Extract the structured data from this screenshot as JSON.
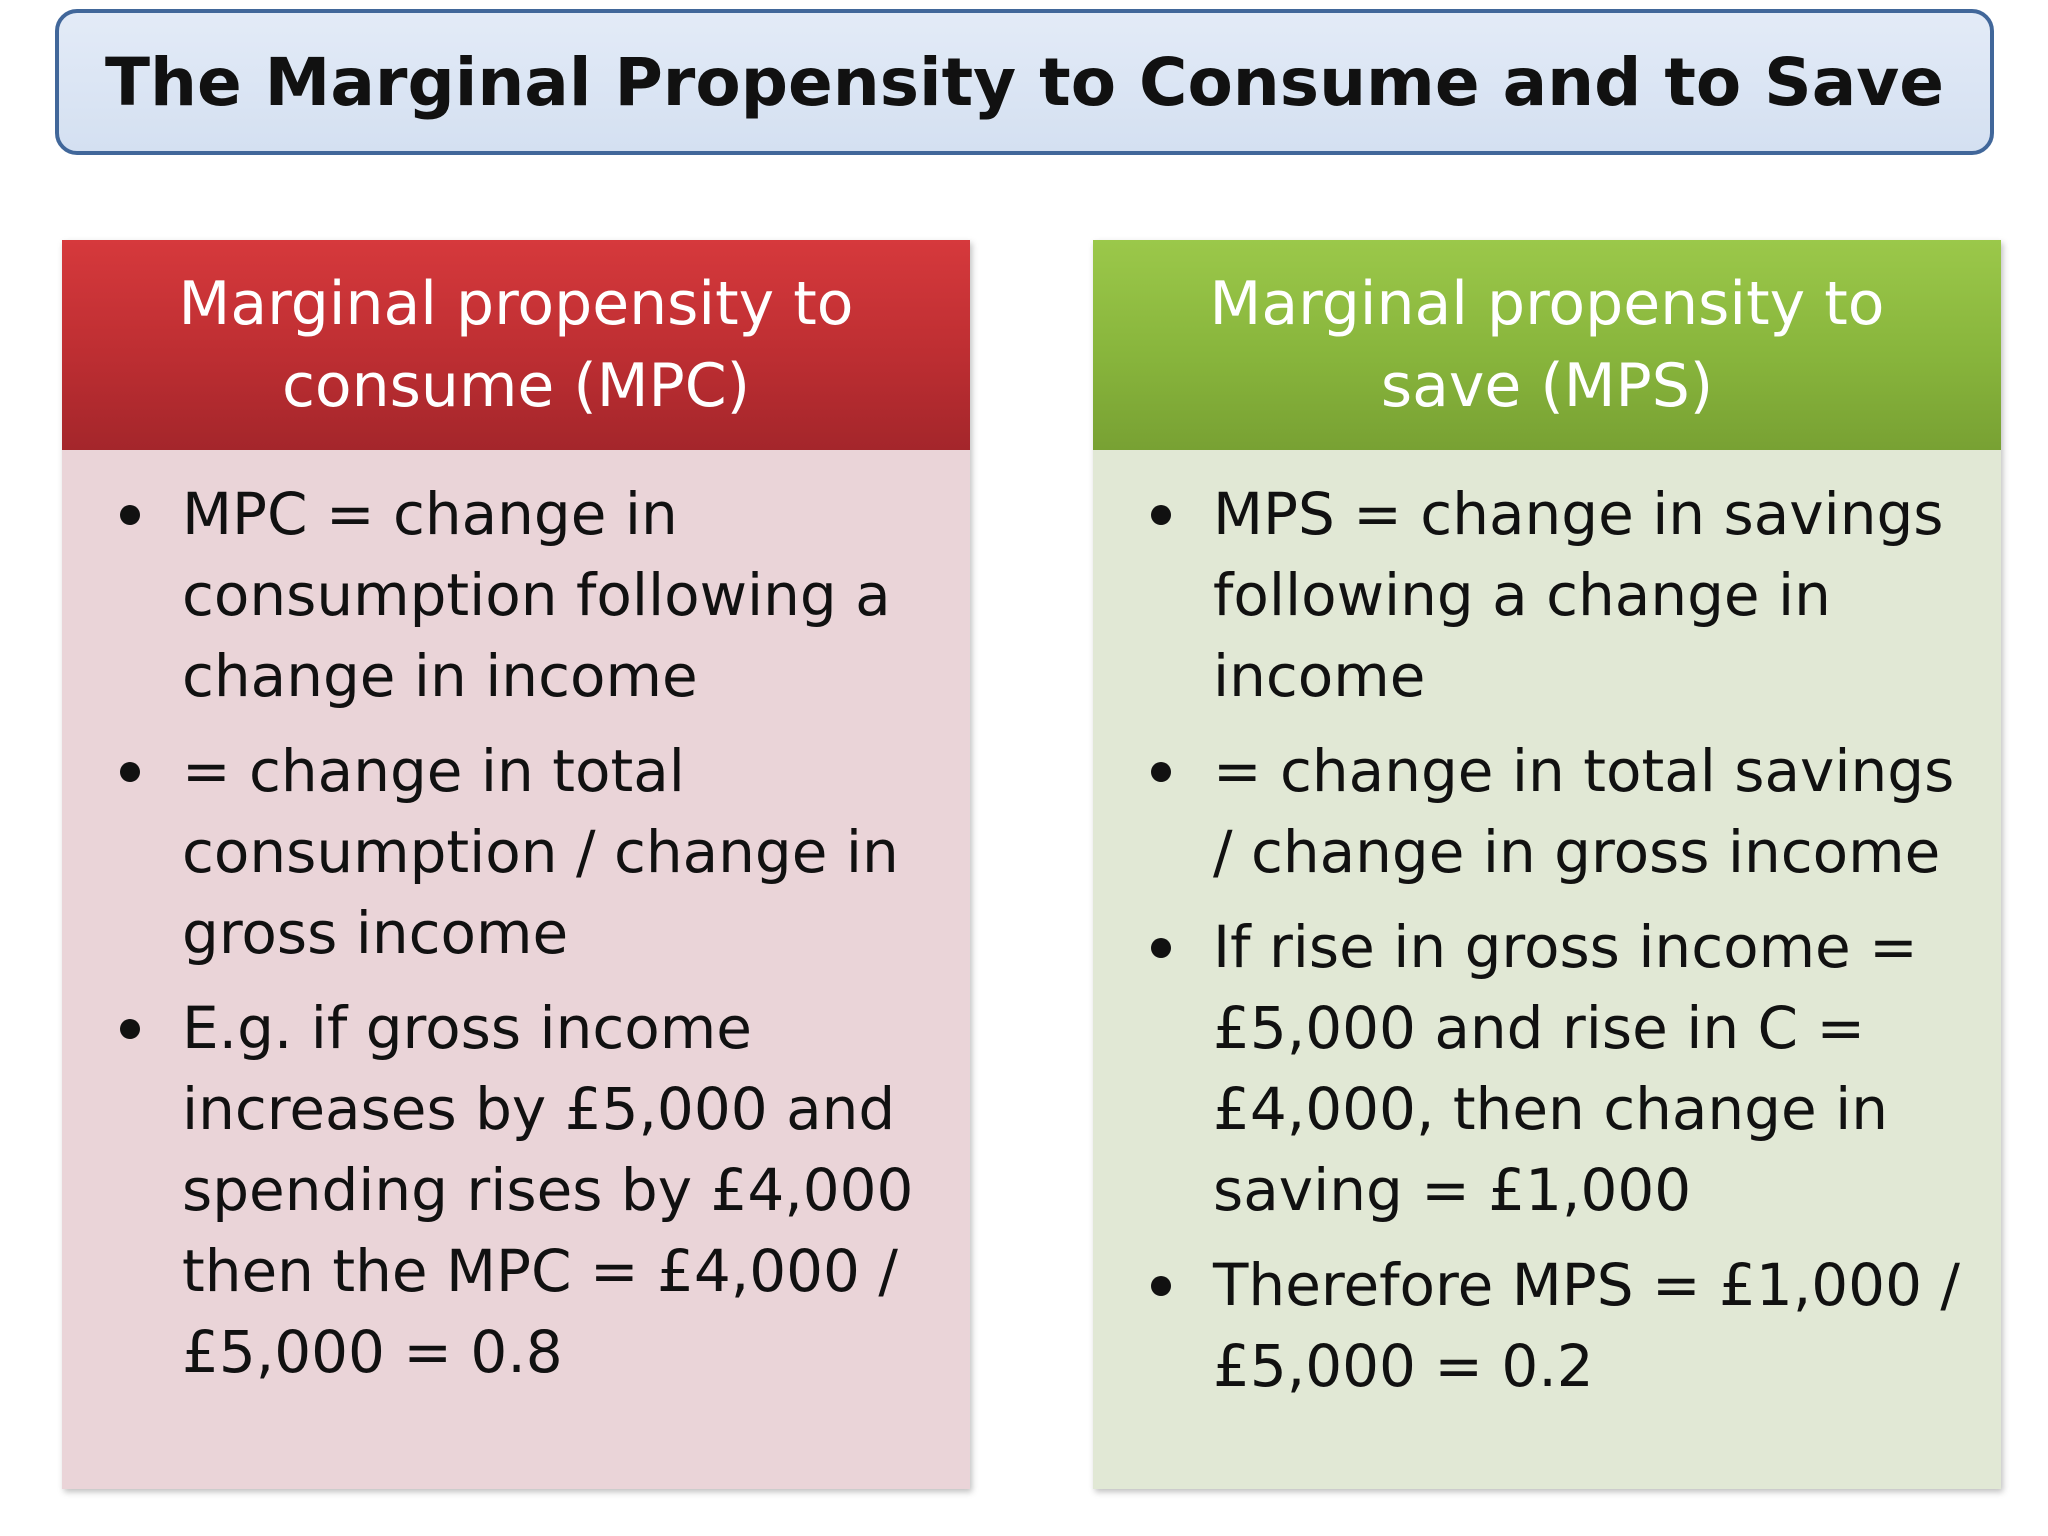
{
  "title": "The Marginal Propensity to Consume and to Save",
  "colors": {
    "title_border": "#41679a",
    "title_fill": "#d4e0f1",
    "mpc_header": "#bd2e32",
    "mpc_body": "#ead4d8",
    "mps_header": "#88b53c",
    "mps_body": "#e1e8d5"
  },
  "mpc": {
    "header": "Marginal propensity to consume (MPC)",
    "bullets": [
      "MPC = change in consumption following a change in income",
      "= change in total consumption / change in gross income",
      "E.g. if gross income increases by £5,000 and spending rises by £4,000 then the MPC = £4,000 / £5,000 = 0.8"
    ]
  },
  "mps": {
    "header": "Marginal propensity to save (MPS)",
    "bullets": [
      "MPS = change in savings following a change in income",
      "= change in total savings / change in gross income",
      "If rise in gross income = £5,000 and rise in C = £4,000, then change in saving = £1,000",
      "Therefore MPS = £1,000 / £5,000 = 0.2"
    ]
  }
}
